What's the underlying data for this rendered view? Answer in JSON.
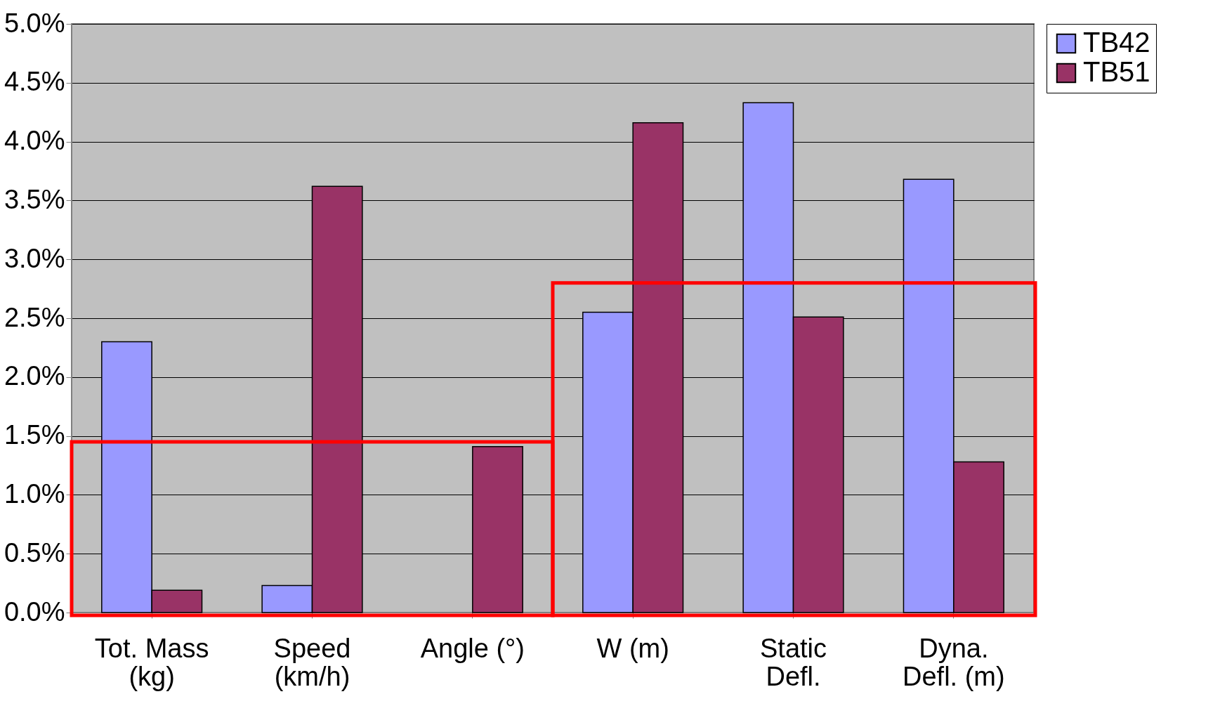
{
  "chart_data": {
    "type": "bar",
    "categories": [
      "Tot. Mass\n(kg)",
      "Speed\n(km/h)",
      "Angle (°)",
      "W (m)",
      "Static\nDefl.",
      "Dyna.\nDefl. (m)"
    ],
    "series": [
      {
        "name": "TB42",
        "color": "#9999ff",
        "values": [
          2.3,
          0.23,
          null,
          2.55,
          4.33,
          3.68
        ]
      },
      {
        "name": "TB51",
        "color": "#993366",
        "values": [
          0.19,
          3.62,
          1.41,
          4.16,
          2.51,
          1.28
        ]
      }
    ],
    "ylim": [
      0,
      5
    ],
    "yticks": [
      {
        "value": 0,
        "label": "0.0%"
      },
      {
        "value": 0.5,
        "label": "0.5%"
      },
      {
        "value": 1,
        "label": "1.0%"
      },
      {
        "value": 1.5,
        "label": "1.5%"
      },
      {
        "value": 2,
        "label": "2.0%"
      },
      {
        "value": 2.5,
        "label": "2.5%"
      },
      {
        "value": 3,
        "label": "3.0%"
      },
      {
        "value": 3.5,
        "label": "3.5%"
      },
      {
        "value": 4,
        "label": "4.0%"
      },
      {
        "value": 4.5,
        "label": "4.5%"
      },
      {
        "value": 5,
        "label": "5.0%"
      }
    ],
    "grid": "y",
    "legend": "right"
  }
}
